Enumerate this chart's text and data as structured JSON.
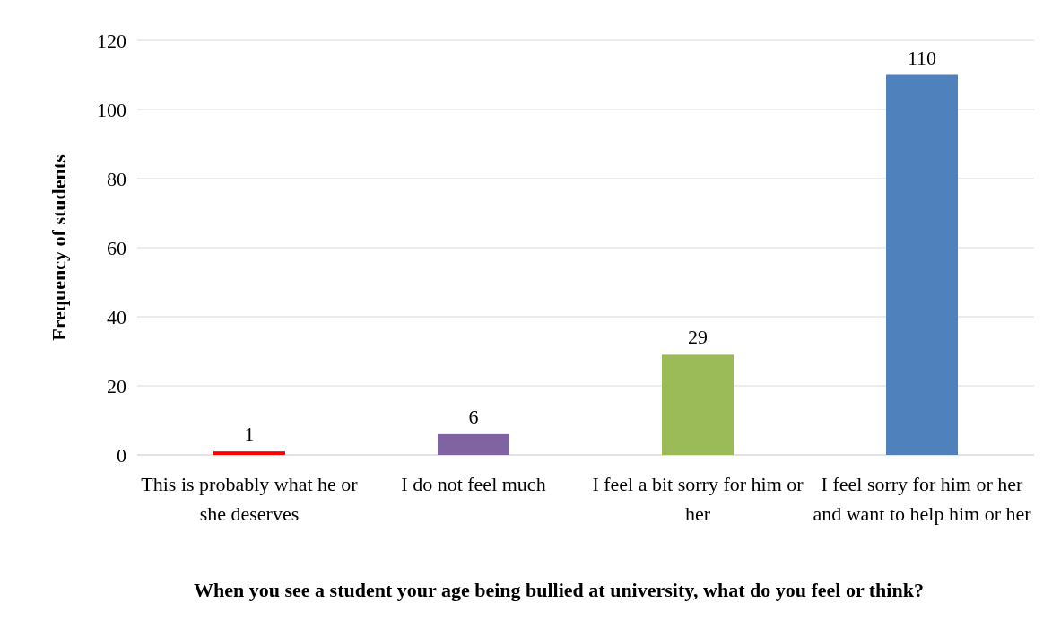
{
  "chart_data": {
    "type": "bar",
    "xlabel": "When you see a student your age being bullied at university, what do you feel or think?",
    "ylabel": "Frequency of students",
    "categories": [
      "This is probably what he or she deserves",
      "I do not feel much",
      "I feel a bit sorry for him or her",
      "I feel sorry for him or her and want to help him or her"
    ],
    "values": [
      1,
      6,
      29,
      110
    ],
    "colors": [
      "#ff0000",
      "#8064a2",
      "#9bbb59",
      "#4f81bd"
    ],
    "ylim": [
      0,
      120
    ],
    "yticks": [
      0,
      20,
      40,
      60,
      80,
      100,
      120
    ],
    "grid": "y",
    "data_labels": true
  }
}
